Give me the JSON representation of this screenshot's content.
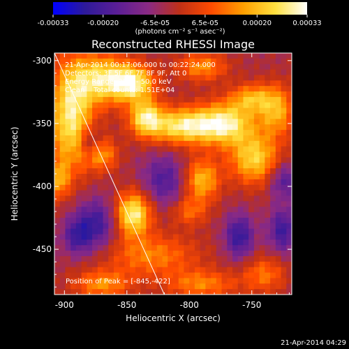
{
  "title": "Reconstructed RHESSI Image",
  "footer_date": "21-Apr-2014 04:29",
  "colorbar": {
    "ticks": [
      "-0.00033",
      "-0.00020",
      "-6.5e-05",
      "6.5e-05",
      "0.00020",
      "0.00033"
    ],
    "tick_values": [
      -0.00033,
      -0.0002,
      -6.5e-05,
      6.5e-05,
      0.0002,
      0.00033
    ],
    "range": [
      -0.00033,
      0.00033
    ],
    "units": "(photons cm⁻² s⁻¹ asec⁻²)"
  },
  "annotations": {
    "time": "21-Apr-2014 00:17:06.000 to 00:22:24.000",
    "detectors": "Detectors: 3F 5F 6F 7F 8F 9F, Att 0",
    "energy": "Energy Range: 25.0 - 50.0 keV",
    "method": "Clean    Total counts: 1.51E+04",
    "peak": "Position of Peak = [-845,-422]"
  },
  "chart_data": {
    "type": "heatmap",
    "title": "Reconstructed RHESSI Image",
    "xlabel": "Heliocentric X (arcsec)",
    "ylabel": "Heliocentric Y (arcsec)",
    "xlim": [
      -908,
      -718
    ],
    "ylim": [
      -486,
      -294
    ],
    "x_ticks": [
      -900,
      -850,
      -800,
      -750
    ],
    "y_ticks": [
      -300,
      -350,
      -400,
      -450
    ],
    "x_tick_labels": [
      "-900",
      "-850",
      "-800",
      "-750"
    ],
    "y_tick_labels": [
      "-300",
      "-350",
      "-400",
      "-450"
    ],
    "peak": [
      -845,
      -422
    ],
    "limb_line": [
      [
        -908,
        -294
      ],
      [
        -820,
        -486
      ]
    ],
    "colormap_stops": [
      "#0000ff",
      "#2d1a9a",
      "#5a1e96",
      "#8a2a84",
      "#c03016",
      "#ff4c00",
      "#ffa000",
      "#ffe040",
      "#ffffff"
    ],
    "blobs": [
      {
        "x": -895,
        "y": -345,
        "sx": 12,
        "sy": 30,
        "v": 0.95
      },
      {
        "x": -870,
        "y": -315,
        "sx": 16,
        "sy": 14,
        "v": 0.85
      },
      {
        "x": -845,
        "y": -318,
        "sx": 12,
        "sy": 10,
        "v": 0.9
      },
      {
        "x": -835,
        "y": -345,
        "sx": 9,
        "sy": 10,
        "v": 0.8
      },
      {
        "x": -805,
        "y": -352,
        "sx": 20,
        "sy": 10,
        "v": 0.95
      },
      {
        "x": -770,
        "y": -350,
        "sx": 16,
        "sy": 12,
        "v": 0.85
      },
      {
        "x": -748,
        "y": -378,
        "sx": 14,
        "sy": 14,
        "v": 0.8
      },
      {
        "x": -730,
        "y": -340,
        "sx": 10,
        "sy": 14,
        "v": 0.65
      },
      {
        "x": -750,
        "y": -330,
        "sx": 12,
        "sy": 8,
        "v": 0.6
      },
      {
        "x": -790,
        "y": -395,
        "sx": 10,
        "sy": 12,
        "v": 0.7
      },
      {
        "x": -845,
        "y": -422,
        "sx": 10,
        "sy": 12,
        "v": 1.0
      },
      {
        "x": -870,
        "y": -375,
        "sx": 9,
        "sy": 9,
        "v": 0.55
      },
      {
        "x": -905,
        "y": -395,
        "sx": 6,
        "sy": 10,
        "v": 0.55
      },
      {
        "x": -830,
        "y": -455,
        "sx": 26,
        "sy": 12,
        "v": 0.5
      },
      {
        "x": -870,
        "y": -478,
        "sx": 16,
        "sy": 8,
        "v": 0.55
      },
      {
        "x": -790,
        "y": -478,
        "sx": 20,
        "sy": 8,
        "v": 0.5
      },
      {
        "x": -740,
        "y": -470,
        "sx": 12,
        "sy": 10,
        "v": 0.45
      },
      {
        "x": -790,
        "y": -305,
        "sx": 14,
        "sy": 8,
        "v": 0.55
      },
      {
        "x": -800,
        "y": -420,
        "sx": 10,
        "sy": 8,
        "v": 0.4
      },
      {
        "x": -760,
        "y": -440,
        "sx": 8,
        "sy": 12,
        "v": -0.6
      },
      {
        "x": -725,
        "y": -435,
        "sx": 8,
        "sy": 12,
        "v": -0.55
      },
      {
        "x": -875,
        "y": -430,
        "sx": 12,
        "sy": 14,
        "v": -0.55
      },
      {
        "x": -820,
        "y": -395,
        "sx": 12,
        "sy": 14,
        "v": -0.45
      },
      {
        "x": -890,
        "y": -440,
        "sx": 8,
        "sy": 10,
        "v": -0.45
      },
      {
        "x": -725,
        "y": -395,
        "sx": 8,
        "sy": 10,
        "v": -0.45
      },
      {
        "x": -880,
        "y": -365,
        "sx": 6,
        "sy": 8,
        "v": -0.4
      }
    ]
  }
}
